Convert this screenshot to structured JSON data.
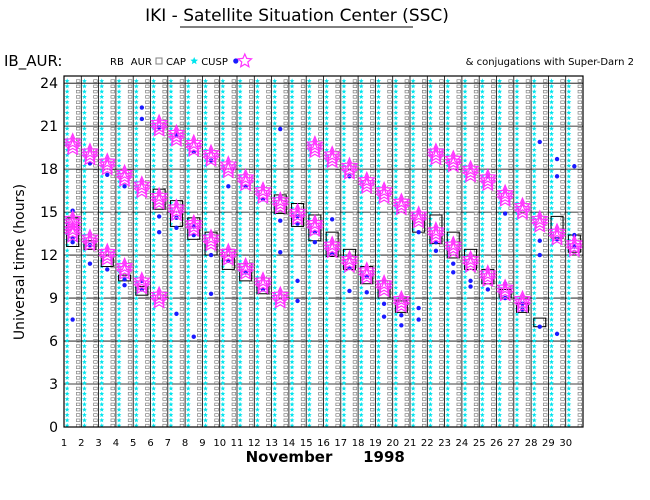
{
  "header": {
    "title": "IKI - Satellite Situation Center (SSC)",
    "satellite": "IB_AUR:",
    "legend": [
      {
        "label": "RB",
        "marker": "none"
      },
      {
        "label": "AUR",
        "marker": "square",
        "color": "#808080"
      },
      {
        "label": "CAP",
        "marker": "star",
        "color": "#00e5ee"
      },
      {
        "label": "CUSP",
        "marker": "dot",
        "color": "#1a1aff"
      }
    ],
    "cusp_marker_color": "#ff33ff",
    "conjugations_note": "& conjugations with Super-Darn 2"
  },
  "axes": {
    "ylabel": "Universal time (hours)",
    "month": "November",
    "year": "1998"
  },
  "chart_data": {
    "type": "scatter",
    "title": "IKI - Satellite Situation Center (SSC)",
    "ylabel": "Universal time (hours)",
    "xlabel": "November 1998",
    "x_ticks": [
      1,
      2,
      3,
      4,
      5,
      6,
      7,
      8,
      9,
      10,
      11,
      12,
      13,
      14,
      15,
      16,
      17,
      18,
      19,
      20,
      21,
      22,
      23,
      24,
      25,
      26,
      27,
      28,
      29,
      30
    ],
    "y_ticks": [
      0,
      3,
      6,
      9,
      12,
      15,
      18,
      21,
      24
    ],
    "xlim": [
      1,
      31
    ],
    "ylim": [
      0,
      24.5
    ],
    "grid": true,
    "colors": {
      "aur": "#808080",
      "cap": "#00e5ee",
      "cusp": "#1a1aff",
      "conjugation": "#ff33ff",
      "rb": "#000000"
    },
    "conjugations": [
      {
        "day": 1.5,
        "hours": [
          19.7,
          14.3,
          13.6
        ]
      },
      {
        "day": 2.5,
        "hours": [
          19.0,
          13.0
        ]
      },
      {
        "day": 3.5,
        "hours": [
          18.3,
          12.0
        ]
      },
      {
        "day": 4.5,
        "hours": [
          17.5,
          11.0
        ]
      },
      {
        "day": 5.5,
        "hours": [
          16.7,
          10.0
        ]
      },
      {
        "day": 6.5,
        "hours": [
          21.0,
          15.9,
          9.0
        ]
      },
      {
        "day": 7.5,
        "hours": [
          20.3,
          15.1
        ]
      },
      {
        "day": 8.5,
        "hours": [
          19.6,
          14.0
        ]
      },
      {
        "day": 9.5,
        "hours": [
          18.9,
          13.0
        ]
      },
      {
        "day": 10.5,
        "hours": [
          18.1,
          12.0
        ]
      },
      {
        "day": 11.5,
        "hours": [
          17.2,
          11.0
        ]
      },
      {
        "day": 12.5,
        "hours": [
          16.3,
          10.0
        ]
      },
      {
        "day": 13.5,
        "hours": [
          15.6,
          9.0
        ]
      },
      {
        "day": 14.5,
        "hours": [
          14.8
        ]
      },
      {
        "day": 15.5,
        "hours": [
          19.5,
          14.0
        ]
      },
      {
        "day": 16.5,
        "hours": [
          18.8,
          12.5
        ]
      },
      {
        "day": 17.5,
        "hours": [
          18.0,
          11.5
        ]
      },
      {
        "day": 18.5,
        "hours": [
          17.0,
          10.7
        ]
      },
      {
        "day": 19.5,
        "hours": [
          16.3,
          9.8
        ]
      },
      {
        "day": 20.5,
        "hours": [
          15.5,
          8.7
        ]
      },
      {
        "day": 21.5,
        "hours": [
          14.6
        ]
      },
      {
        "day": 22.5,
        "hours": [
          19.0,
          13.5
        ]
      },
      {
        "day": 23.5,
        "hours": [
          18.5,
          12.5
        ]
      },
      {
        "day": 24.5,
        "hours": [
          17.8,
          11.5
        ]
      },
      {
        "day": 25.5,
        "hours": [
          17.2,
          10.5
        ]
      },
      {
        "day": 26.5,
        "hours": [
          16.1,
          9.5
        ]
      },
      {
        "day": 27.5,
        "hours": [
          15.2,
          8.7
        ]
      },
      {
        "day": 28.5,
        "hours": [
          14.3
        ]
      },
      {
        "day": 29.5,
        "hours": [
          13.4
        ]
      },
      {
        "day": 30.5,
        "hours": [
          12.6
        ]
      }
    ],
    "rb_boxes": [
      {
        "day": 1.5,
        "from": 12.6,
        "to": 14.6
      },
      {
        "day": 2.5,
        "from": 12.4,
        "to": 13.0
      },
      {
        "day": 3.5,
        "from": 11.2,
        "to": 12.0
      },
      {
        "day": 4.5,
        "from": 10.2,
        "to": 10.6
      },
      {
        "day": 5.5,
        "from": 9.2,
        "to": 9.8
      },
      {
        "day": 6.5,
        "from": 15.2,
        "to": 16.6
      },
      {
        "day": 7.5,
        "from": 14.0,
        "to": 15.8
      },
      {
        "day": 8.5,
        "from": 13.1,
        "to": 14.6
      },
      {
        "day": 9.5,
        "from": 12.0,
        "to": 13.6
      },
      {
        "day": 10.5,
        "from": 11.0,
        "to": 12.4
      },
      {
        "day": 11.5,
        "from": 10.2,
        "to": 11.4
      },
      {
        "day": 12.5,
        "from": 9.3,
        "to": 10.4
      },
      {
        "day": 13.5,
        "from": 14.9,
        "to": 16.2
      },
      {
        "day": 14.5,
        "from": 14.0,
        "to": 15.6
      },
      {
        "day": 15.5,
        "from": 13.0,
        "to": 14.8
      },
      {
        "day": 16.5,
        "from": 11.9,
        "to": 13.6
      },
      {
        "day": 17.5,
        "from": 11.0,
        "to": 12.4
      },
      {
        "day": 18.5,
        "from": 10.0,
        "to": 11.2
      },
      {
        "day": 19.5,
        "from": 9.0,
        "to": 10.2
      },
      {
        "day": 20.5,
        "from": 8.0,
        "to": 8.8
      },
      {
        "day": 21.5,
        "from": 13.6,
        "to": 15.0
      },
      {
        "day": 22.5,
        "from": 12.8,
        "to": 14.8
      },
      {
        "day": 23.5,
        "from": 11.8,
        "to": 13.6
      },
      {
        "day": 24.5,
        "from": 11.0,
        "to": 12.4
      },
      {
        "day": 25.5,
        "from": 10.0,
        "to": 11.0
      },
      {
        "day": 26.5,
        "from": 9.0,
        "to": 9.6
      },
      {
        "day": 27.5,
        "from": 8.0,
        "to": 8.6
      },
      {
        "day": 28.5,
        "from": 7.0,
        "to": 7.6
      },
      {
        "day": 29.5,
        "from": 13.2,
        "to": 14.7
      },
      {
        "day": 30.5,
        "from": 12.2,
        "to": 13.4
      }
    ],
    "cusp_points": [
      {
        "day": 1.5,
        "hours": [
          15.1,
          13.2,
          12.9,
          7.5
        ]
      },
      {
        "day": 2.5,
        "hours": [
          18.4,
          12.7,
          11.4
        ]
      },
      {
        "day": 3.5,
        "hours": [
          17.6,
          11.0
        ]
      },
      {
        "day": 4.5,
        "hours": [
          16.8,
          10.3,
          9.9
        ]
      },
      {
        "day": 5.5,
        "hours": [
          22.3,
          21.5,
          10.2,
          9.6
        ]
      },
      {
        "day": 6.5,
        "hours": [
          20.9,
          14.7,
          13.6
        ]
      },
      {
        "day": 7.5,
        "hours": [
          20.4,
          14.6,
          13.9,
          7.9
        ]
      },
      {
        "day": 8.5,
        "hours": [
          19.2,
          14.0,
          13.4,
          6.3
        ]
      },
      {
        "day": 9.5,
        "hours": [
          18.6,
          12.0,
          9.3
        ]
      },
      {
        "day": 10.5,
        "hours": [
          16.8,
          11.6
        ]
      },
      {
        "day": 11.5,
        "hours": [
          16.8,
          10.8
        ]
      },
      {
        "day": 12.5,
        "hours": [
          15.9,
          9.6
        ]
      },
      {
        "day": 13.5,
        "hours": [
          20.8,
          16.0,
          14.4,
          12.2
        ]
      },
      {
        "day": 14.5,
        "hours": [
          14.7,
          14.2,
          10.2,
          8.8
        ]
      },
      {
        "day": 15.5,
        "hours": [
          13.6,
          12.9
        ]
      },
      {
        "day": 16.5,
        "hours": [
          14.5,
          12.1
        ]
      },
      {
        "day": 17.5,
        "hours": [
          17.5,
          11.1,
          9.5
        ]
      },
      {
        "day": 18.5,
        "hours": [
          10.5,
          9.4
        ]
      },
      {
        "day": 19.5,
        "hours": [
          8.6,
          7.7
        ]
      },
      {
        "day": 20.5,
        "hours": [
          7.8,
          7.1
        ]
      },
      {
        "day": 21.5,
        "hours": [
          13.6,
          8.3,
          7.5
        ]
      },
      {
        "day": 22.5,
        "hours": [
          12.9,
          12.3
        ]
      },
      {
        "day": 23.5,
        "hours": [
          11.4,
          10.8
        ]
      },
      {
        "day": 24.5,
        "hours": [
          10.2,
          9.8
        ]
      },
      {
        "day": 25.5,
        "hours": [
          17.5,
          9.6
        ]
      },
      {
        "day": 26.5,
        "hours": [
          14.9,
          10.0,
          9.0
        ]
      },
      {
        "day": 27.5,
        "hours": [
          8.6,
          8.2
        ]
      },
      {
        "day": 28.5,
        "hours": [
          19.9,
          13.0,
          12.0,
          7.0
        ]
      },
      {
        "day": 29.5,
        "hours": [
          18.7,
          17.5,
          13.1,
          6.5
        ]
      },
      {
        "day": 30.5,
        "hours": [
          18.2,
          13.4,
          12.6
        ]
      }
    ]
  }
}
